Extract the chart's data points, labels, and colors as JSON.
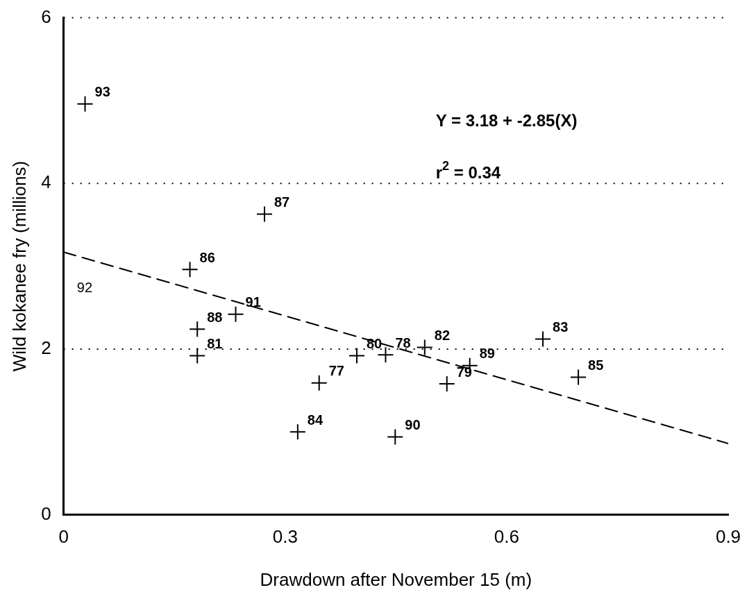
{
  "chart_data": {
    "type": "scatter",
    "xlabel": "Drawdown after November 15 (m)",
    "ylabel": "Wild kokanee fry (millions)",
    "xlim": [
      0,
      0.9
    ],
    "xticks": [
      0,
      0.3,
      0.6,
      0.9
    ],
    "ylim": [
      0,
      6
    ],
    "yticks": [
      0,
      2,
      4,
      6
    ],
    "grid": "y",
    "legend": false,
    "marker": "cross",
    "series": [
      {
        "type": "scatter",
        "color": "#000000",
        "x": [
          0.029,
          0.272,
          0.171,
          0.181,
          0.233,
          0.181,
          0.346,
          0.317,
          0.397,
          0.436,
          0.489,
          0.449,
          0.519,
          0.55,
          0.649,
          0.697
        ],
        "values": [
          4.96,
          3.63,
          2.96,
          2.24,
          2.42,
          1.92,
          1.59,
          1.0,
          1.92,
          1.93,
          2.02,
          0.94,
          1.58,
          1.8,
          2.12,
          1.66
        ]
      },
      {
        "type": "line",
        "color": "#000000",
        "line_style": "dashed",
        "marker": "none",
        "x": [
          0,
          0.9
        ],
        "values": [
          3.17,
          0.86
        ]
      }
    ],
    "annotations": [
      "Y = 3.18 + -2.85(X)",
      "r$^{2}$ = 0.34",
      "92",
      {
        "text": "93",
        "x": 0.029,
        "y": 4.96
      },
      {
        "text": "87",
        "x": 0.272,
        "y": 3.63
      },
      {
        "text": "86",
        "x": 0.171,
        "y": 2.96
      },
      {
        "text": "88",
        "x": 0.181,
        "y": 2.24
      },
      {
        "text": "91",
        "x": 0.233,
        "y": 2.42
      },
      {
        "text": "81",
        "x": 0.181,
        "y": 1.92
      },
      {
        "text": "77",
        "x": 0.346,
        "y": 1.59
      },
      {
        "text": "84",
        "x": 0.317,
        "y": 1.0
      },
      {
        "text": "80",
        "x": 0.397,
        "y": 1.92
      },
      {
        "text": "78",
        "x": 0.436,
        "y": 1.93
      },
      {
        "text": "82",
        "x": 0.489,
        "y": 2.02
      },
      {
        "text": "90",
        "x": 0.449,
        "y": 0.94
      },
      {
        "text": "79",
        "x": 0.519,
        "y": 1.58
      },
      {
        "text": "89",
        "x": 0.55,
        "y": 1.8
      },
      {
        "text": "83",
        "x": 0.649,
        "y": 2.12
      },
      {
        "text": "85",
        "x": 0.697,
        "y": 1.66
      }
    ]
  }
}
